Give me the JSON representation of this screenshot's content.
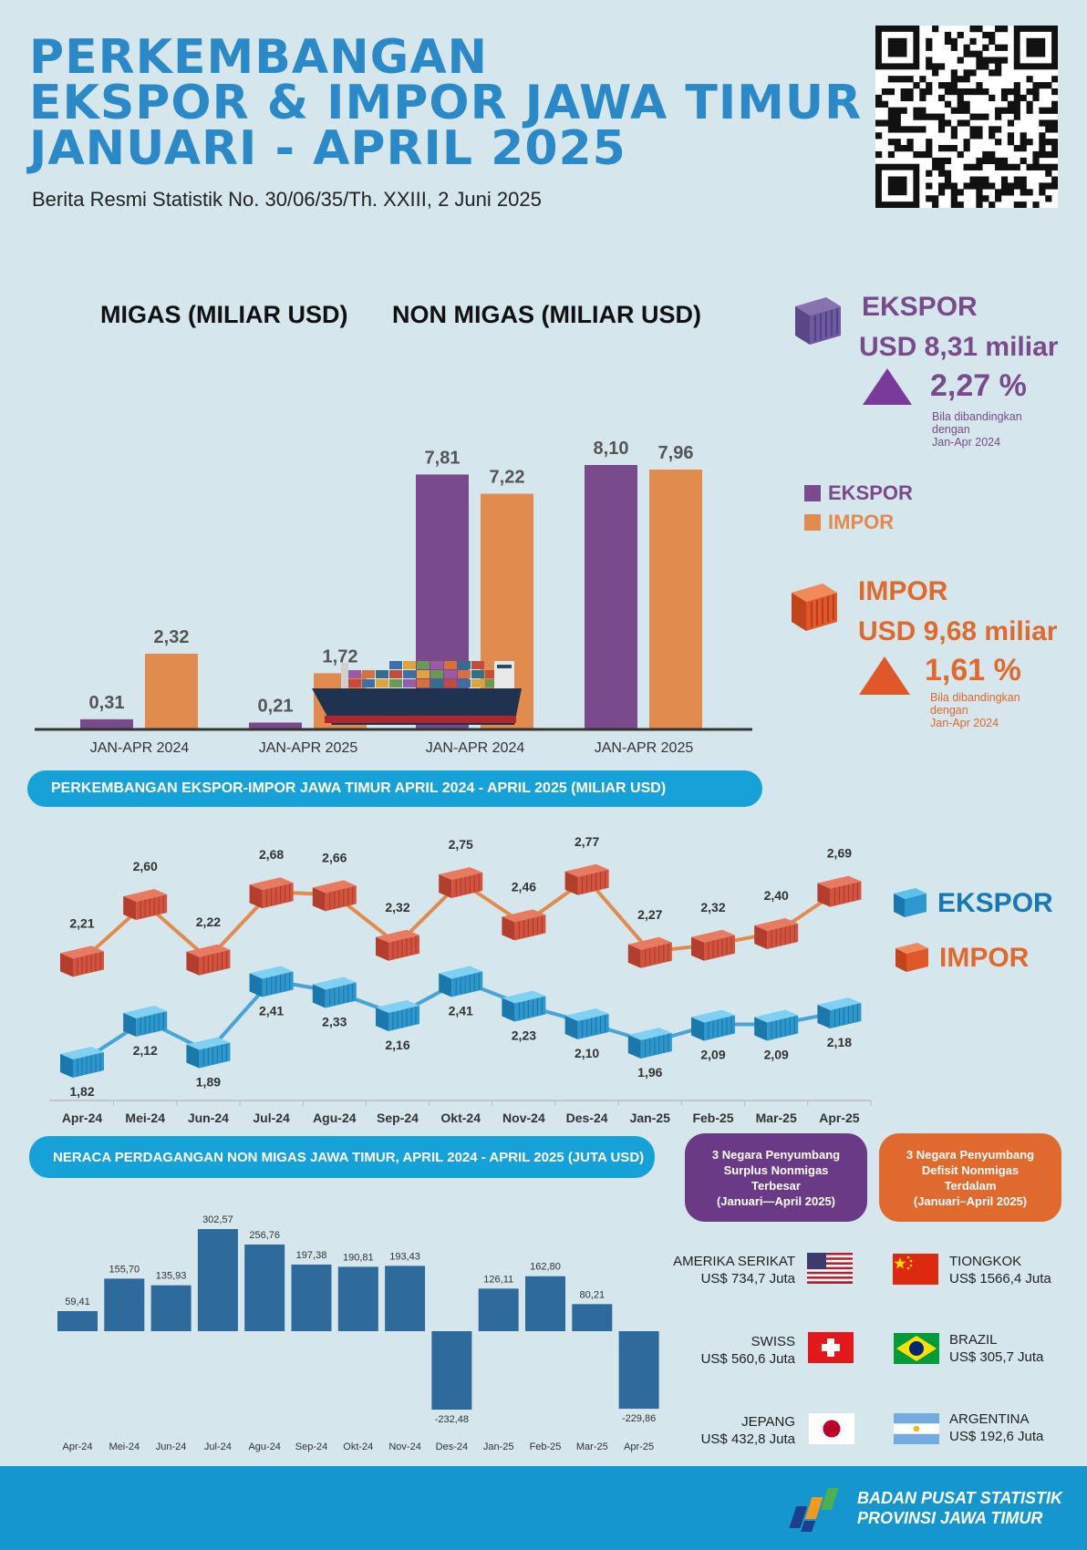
{
  "header": {
    "title_lines": [
      "PERKEMBANGAN",
      "EKSPOR & IMPOR JAWA TIMUR",
      "JANUARI - APRIL 2025"
    ],
    "subtitle": "Berita Resmi Statistik  No. 30/06/35/Th. XXIII, 2 Juni 2025"
  },
  "colors": {
    "ekspor": "#7a4b8c",
    "impor": "#e28b4f",
    "title": "#2a89c6",
    "pill": "#16a2d9",
    "bar_neraca": "#2e6a9b"
  },
  "summary": {
    "ekspor": {
      "label": "EKSPOR",
      "value": "USD 8,31 miliar",
      "change": "2,27 %",
      "note_lines": [
        "Bila dibandingkan",
        "dengan",
        "Jan-Apr 2024"
      ],
      "icon": "purple-container-icon"
    },
    "impor": {
      "label": "IMPOR",
      "value": "USD 9,68 miliar",
      "change": "1,61 %",
      "note_lines": [
        "Bila dibandingkan",
        "dengan",
        "Jan-Apr 2024"
      ],
      "icon": "orange-container-icon"
    },
    "legend": [
      "EKSPOR",
      "IMPOR"
    ]
  },
  "chart_data": [
    {
      "type": "bar",
      "title": "MIGAS (MILIAR USD)",
      "categories": [
        "JAN-APR  2024",
        "JAN-APR 2025"
      ],
      "series": [
        {
          "name": "EKSPOR",
          "values": [
            0.31,
            0.21
          ],
          "labels": [
            "0,31",
            "0,21"
          ]
        },
        {
          "name": "IMPOR",
          "values": [
            2.32,
            1.72
          ],
          "labels": [
            "2,32",
            "1,72"
          ]
        }
      ]
    },
    {
      "type": "bar",
      "title": "NON MIGAS (MILIAR USD)",
      "categories": [
        "JAN-APR  2024",
        "JAN-APR  2025"
      ],
      "series": [
        {
          "name": "EKSPOR",
          "values": [
            7.81,
            8.1
          ],
          "labels": [
            "7,81",
            "8,10"
          ]
        },
        {
          "name": "IMPOR",
          "values": [
            7.22,
            7.96
          ],
          "labels": [
            "7,22",
            "7,96"
          ]
        }
      ]
    },
    {
      "type": "line",
      "title": "PERKEMBANGAN EKSPOR-IMPOR JAWA TIMUR APRIL 2024 - APRIL 2025 (MILIAR USD)",
      "categories": [
        "Apr-24",
        "Mei-24",
        "Jun-24",
        "Jul-24",
        "Agu-24",
        "Sep-24",
        "Okt-24",
        "Nov-24",
        "Des-24",
        "Jan-25",
        "Feb-25",
        "Mar-25",
        "Apr-25"
      ],
      "series": [
        {
          "name": "EKSPOR",
          "values": [
            1.82,
            2.12,
            1.89,
            2.41,
            2.33,
            2.16,
            2.41,
            2.23,
            2.1,
            1.96,
            2.09,
            2.09,
            2.18
          ],
          "labels": [
            "1,82",
            "2,12",
            "1,89",
            "2,41",
            "2,33",
            "2,16",
            "2,41",
            "2,23",
            "2,10",
            "1,96",
            "2,09",
            "2,09",
            "2,18"
          ]
        },
        {
          "name": "IMPOR",
          "values": [
            2.21,
            2.6,
            2.22,
            2.68,
            2.66,
            2.32,
            2.75,
            2.46,
            2.77,
            2.27,
            2.32,
            2.4,
            2.69
          ],
          "labels": [
            "2,21",
            "2,60",
            "2,22",
            "2,68",
            "2,66",
            "2,32",
            "2,75",
            "2,46",
            "2,77",
            "2,27",
            "2,32",
            "2,40",
            "2,69"
          ]
        }
      ],
      "legend": [
        "EKSPOR",
        "IMPOR"
      ]
    },
    {
      "type": "bar",
      "title": "NERACA PERDAGANGAN NON MIGAS JAWA TIMUR, APRIL 2024 - APRIL 2025 (JUTA USD)",
      "categories": [
        "Apr-24",
        "Mei-24",
        "Jun-24",
        "Jul-24",
        "Agu-24",
        "Sep-24",
        "Okt-24",
        "Nov-24",
        "Des-24",
        "Jan-25",
        "Feb-25",
        "Mar-25",
        "Apr-25"
      ],
      "values": [
        59.41,
        155.7,
        135.93,
        302.57,
        256.76,
        197.38,
        190.81,
        193.43,
        -232.48,
        126.11,
        162.8,
        80.21,
        -229.86
      ],
      "labels": [
        "59,41",
        "155,70",
        "135,93",
        "302,57",
        "256,76",
        "197,38",
        "190,81",
        "193,43",
        "-232,48",
        "126,11",
        "162,80",
        "80,21",
        "-229,86"
      ]
    }
  ],
  "surplus": {
    "title_lines": [
      "3 Negara Penyumbang",
      "Surplus Nonmigas",
      "Terbesar",
      "(Januari—April 2025)"
    ],
    "countries": [
      {
        "name": "AMERIKA SERIKAT",
        "value": "US$ 734,7 Juta",
        "flag": "usa-flag-icon"
      },
      {
        "name": "SWISS",
        "value": "US$ 560,6 Juta",
        "flag": "switzerland-flag-icon"
      },
      {
        "name": "JEPANG",
        "value": "US$ 432,8 Juta",
        "flag": "japan-flag-icon"
      }
    ]
  },
  "deficit": {
    "title_lines": [
      "3 Negara Penyumbang",
      "Defisit Nonmigas",
      "Terdalam",
      "(Januari–April 2025)"
    ],
    "countries": [
      {
        "name": "TIONGKOK",
        "value": "US$ 1566,4 Juta",
        "flag": "china-flag-icon"
      },
      {
        "name": "BRAZIL",
        "value": "US$ 305,7 Juta",
        "flag": "brazil-flag-icon"
      },
      {
        "name": "ARGENTINA",
        "value": "US$ 192,6 Juta",
        "flag": "argentina-flag-icon"
      }
    ]
  },
  "footer": {
    "line1": "BADAN PUSAT STATISTIK",
    "line2": "PROVINSI JAWA TIMUR"
  }
}
